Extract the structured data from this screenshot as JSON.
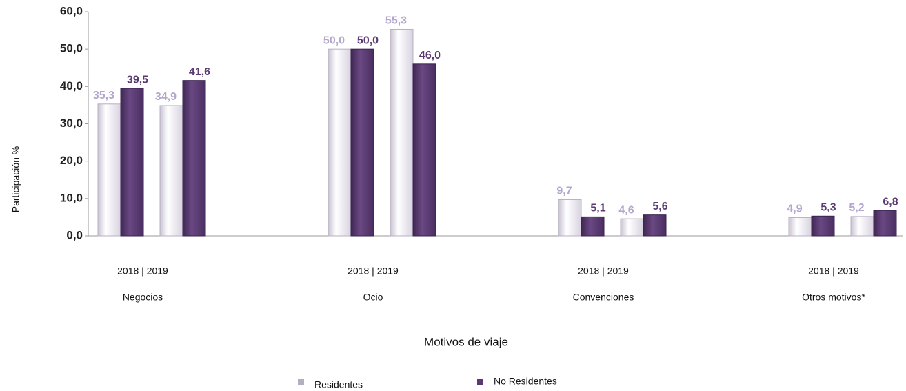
{
  "chart_data": {
    "type": "bar",
    "y_label": "Participación %",
    "x_label": "Motivos de viaje",
    "groups": [
      "Negocios",
      "Ocio",
      "Convenciones",
      "Otros motivos*"
    ],
    "group_ticks": [
      "2018  |  2019",
      "2018   |   2019",
      "2018  |  2019",
      "2018  |  2019"
    ],
    "series": [
      {
        "name": "Residentes",
        "color": "#e6e2ec",
        "label_color": "#b3a6cc",
        "values": [
          35.3,
          34.9,
          50.0,
          55.3,
          9.7,
          4.6,
          4.9,
          5.2
        ],
        "value_labels": [
          "35,3",
          "34,9",
          "50,0",
          "55,3",
          "9,7",
          "4,6",
          "4,9",
          "5,2"
        ]
      },
      {
        "name": "No Residentes",
        "color": "#5b3a73",
        "label_color": "#5b3a73",
        "values": [
          39.5,
          41.6,
          50.0,
          46.0,
          5.1,
          5.6,
          5.3,
          6.8
        ],
        "value_labels": [
          "39,5",
          "41,6",
          "50,0",
          "46,0",
          "5,1",
          "5,6",
          "5,3",
          "6,8"
        ]
      }
    ],
    "ylim": [
      0,
      60
    ],
    "yticks": [
      {
        "value": 0,
        "label": "0,0"
      },
      {
        "value": 10,
        "label": "10,0"
      },
      {
        "value": 20,
        "label": "20,0"
      },
      {
        "value": 30,
        "label": "30,0"
      },
      {
        "value": 40,
        "label": "40,0"
      },
      {
        "value": 50,
        "label": "50,0"
      },
      {
        "value": 60,
        "label": "60,0"
      }
    ]
  }
}
